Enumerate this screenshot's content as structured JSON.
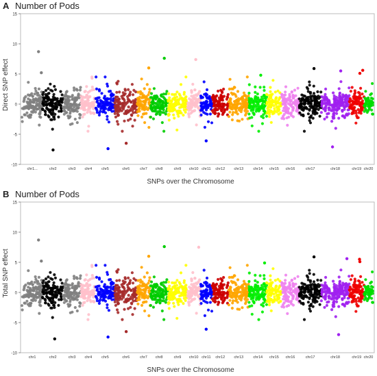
{
  "chart_data": [
    {
      "panel": "A",
      "title": "Number of Pods",
      "type": "scatter",
      "xlabel": "SNPs over the Chromosome",
      "ylabel": "Direct SNP effect",
      "ylim": [
        -10,
        15
      ],
      "yticks": [
        15,
        10,
        5,
        0,
        -5,
        -10
      ],
      "grid": false,
      "chromosomes": [
        {
          "name": "chr1",
          "label": "chr1...",
          "color": "#808080"
        },
        {
          "name": "chr2",
          "label": "chr2",
          "color": "#000000"
        },
        {
          "name": "chr3",
          "label": "chr3",
          "color": "#808080"
        },
        {
          "name": "chr4",
          "label": "chr4",
          "color": "#ffc0cb"
        },
        {
          "name": "chr5",
          "label": "chr5",
          "color": "#0000ff"
        },
        {
          "name": "chr6",
          "label": "chr6",
          "color": "#a52a2a"
        },
        {
          "name": "chr7",
          "label": "chr7",
          "color": "#ffa500"
        },
        {
          "name": "chr8",
          "label": "chr8",
          "color": "#00cc00"
        },
        {
          "name": "chr9",
          "label": "chr9",
          "color": "#ffff00"
        },
        {
          "name": "chr10",
          "label": "chr10",
          "color": "#ffc0cb"
        },
        {
          "name": "chr11",
          "label": "chr11",
          "color": "#0000ff"
        },
        {
          "name": "chr12",
          "label": "chr12",
          "color": "#cc0000"
        },
        {
          "name": "chr13",
          "label": "chr13",
          "color": "#ffa500"
        },
        {
          "name": "chr14",
          "label": "chr14",
          "color": "#00ee00"
        },
        {
          "name": "chr15",
          "label": "chr15",
          "color": "#ffff00"
        },
        {
          "name": "chr16",
          "label": "chr16",
          "color": "#ee82ee"
        },
        {
          "name": "chr17",
          "label": "chr17",
          "color": "#000000"
        },
        {
          "name": "chr18",
          "label": "chr18",
          "color": "#a020f0"
        },
        {
          "name": "chr19",
          "label": "chr19",
          "color": "#ee0000"
        },
        {
          "name": "chr20",
          "label": "chr20",
          "color": "#00dd00"
        }
      ],
      "outliers": [
        {
          "chr": "chr1",
          "y": 8.7
        },
        {
          "chr": "chr1",
          "y": 5.2
        },
        {
          "chr": "chr2",
          "y": -7.6
        },
        {
          "chr": "chr5",
          "y": -7.4
        },
        {
          "chr": "chr6",
          "y": -6.5
        },
        {
          "chr": "chr7",
          "y": 6.0
        },
        {
          "chr": "chr8",
          "y": 7.6
        },
        {
          "chr": "chr10",
          "y": 7.4
        },
        {
          "chr": "chr11",
          "y": -6.1
        },
        {
          "chr": "chr14",
          "y": 4.8
        },
        {
          "chr": "chr17",
          "y": 5.9
        },
        {
          "chr": "chr18",
          "y": 5.5
        },
        {
          "chr": "chr18",
          "y": -7.1
        },
        {
          "chr": "chr19",
          "y": 5.6
        },
        {
          "chr": "chr19",
          "y": 5.1
        }
      ]
    },
    {
      "panel": "B",
      "title": "Number of Pods",
      "type": "scatter",
      "xlabel": "SNPs over the Chromosome",
      "ylabel": "Total SNP effect",
      "ylim": [
        -10,
        15
      ],
      "yticks": [
        15,
        10,
        5,
        0,
        -5,
        -10
      ],
      "grid": false,
      "chromosomes": [
        {
          "name": "chr1",
          "label": "chr1",
          "color": "#808080"
        },
        {
          "name": "chr2",
          "label": "chr2",
          "color": "#000000"
        },
        {
          "name": "chr3",
          "label": "chr3",
          "color": "#808080"
        },
        {
          "name": "chr4",
          "label": "chr4",
          "color": "#ffc0cb"
        },
        {
          "name": "chr5",
          "label": "chr5",
          "color": "#0000ff"
        },
        {
          "name": "chr6",
          "label": "chr6",
          "color": "#a52a2a"
        },
        {
          "name": "chr7",
          "label": "chr7",
          "color": "#ffa500"
        },
        {
          "name": "chr8",
          "label": "chr8",
          "color": "#00cc00"
        },
        {
          "name": "chr9",
          "label": "chr9",
          "color": "#ffff00"
        },
        {
          "name": "chr10",
          "label": "chr10",
          "color": "#ffc0cb"
        },
        {
          "name": "chr11",
          "label": "chr11",
          "color": "#0000ff"
        },
        {
          "name": "chr12",
          "label": "chr12",
          "color": "#cc0000"
        },
        {
          "name": "chr13",
          "label": "chr13",
          "color": "#ffa500"
        },
        {
          "name": "chr14",
          "label": "chr14",
          "color": "#00ee00"
        },
        {
          "name": "chr15",
          "label": "chr15",
          "color": "#ffff00"
        },
        {
          "name": "chr16",
          "label": "chr16",
          "color": "#ee82ee"
        },
        {
          "name": "chr17",
          "label": "chr17",
          "color": "#000000"
        },
        {
          "name": "chr18",
          "label": "chr18",
          "color": "#a020f0"
        },
        {
          "name": "chr19",
          "label": "chr19",
          "color": "#ee0000"
        },
        {
          "name": "chr20",
          "label": "chr20",
          "color": "#00dd00"
        }
      ],
      "outliers": [
        {
          "chr": "chr1",
          "y": 8.7
        },
        {
          "chr": "chr1",
          "y": 5.2
        },
        {
          "chr": "chr2",
          "y": -7.7
        },
        {
          "chr": "chr5",
          "y": -7.4
        },
        {
          "chr": "chr6",
          "y": -6.5
        },
        {
          "chr": "chr7",
          "y": 6.0
        },
        {
          "chr": "chr8",
          "y": 7.6
        },
        {
          "chr": "chr10",
          "y": 7.5
        },
        {
          "chr": "chr11",
          "y": -6.1
        },
        {
          "chr": "chr14",
          "y": 4.9
        },
        {
          "chr": "chr17",
          "y": 5.9
        },
        {
          "chr": "chr18",
          "y": 5.6
        },
        {
          "chr": "chr18",
          "y": -7.0
        },
        {
          "chr": "chr19",
          "y": 5.5
        },
        {
          "chr": "chr19",
          "y": 5.1
        }
      ]
    }
  ]
}
